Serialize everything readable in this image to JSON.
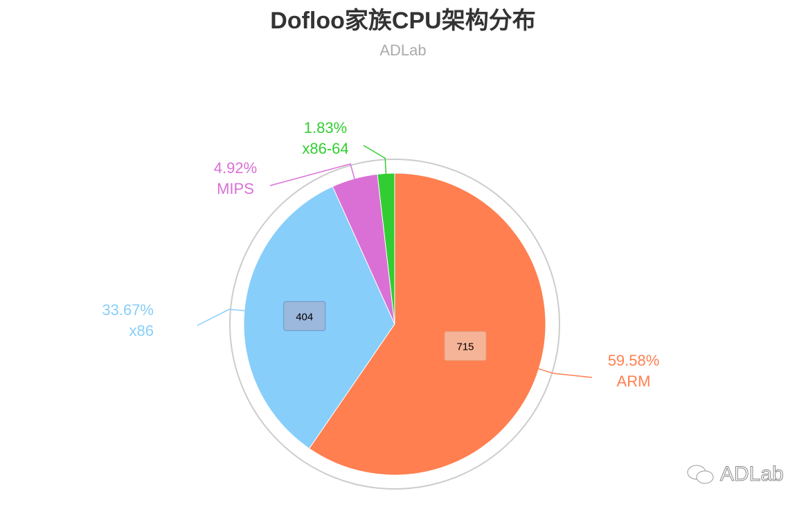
{
  "chart_data": {
    "type": "pie",
    "title": "Dofloo家族CPU架构分布",
    "subtitle": "ADLab",
    "slices": [
      {
        "name": "ARM",
        "value": 715,
        "percent": "59.58%",
        "color": "#ff7f50",
        "show_value": true
      },
      {
        "name": "x86",
        "value": 404,
        "percent": "33.67%",
        "color": "#87cefa",
        "show_value": true
      },
      {
        "name": "MIPS",
        "value": 59,
        "percent": "4.92%",
        "color": "#da70d6",
        "show_value": false
      },
      {
        "name": "x86-64",
        "value": 22,
        "percent": "1.83%",
        "color": "#32cd32",
        "show_value": false
      }
    ],
    "start_angle": "12 o'clock",
    "direction": "clockwise"
  },
  "watermark": {
    "text": "ADLab",
    "icon": "wechat-icon"
  }
}
